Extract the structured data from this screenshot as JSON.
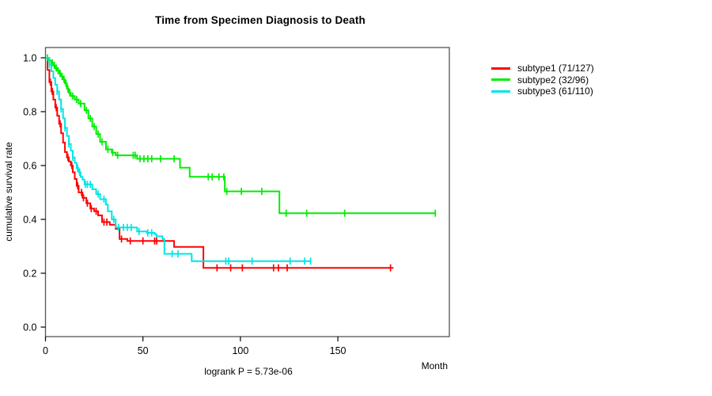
{
  "chart_data": {
    "type": "line",
    "subtype": "kaplan-meier-step-curves",
    "title": "Time from Specimen Diagnosis to Death",
    "xlabel": "Month",
    "ylabel": "cumulative survival rate",
    "footnote": "logrank P = 5.73e-06",
    "grid": false,
    "legend_position": "right-outside",
    "xlim": [
      0,
      207.2
    ],
    "ylim": [
      -0.0353,
      1.0382
    ],
    "xticks": [
      {
        "v": 0,
        "label": "0"
      },
      {
        "v": 50,
        "label": "50"
      },
      {
        "v": 100,
        "label": "100"
      },
      {
        "v": 150,
        "label": "150"
      }
    ],
    "yticks": [
      {
        "v": 0.0,
        "label": "0.0"
      },
      {
        "v": 0.2,
        "label": "0.2"
      },
      {
        "v": 0.4,
        "label": "0.4"
      },
      {
        "v": 0.6,
        "label": "0.6"
      },
      {
        "v": 0.8,
        "label": "0.8"
      },
      {
        "v": 1.0,
        "label": "1.0"
      }
    ],
    "series": [
      {
        "name": "subtype1",
        "label": "subtype1 (71/127)",
        "events": "71/127",
        "color": "#ff0000",
        "steps": [
          [
            0,
            1.0
          ],
          [
            1,
            0.955
          ],
          [
            2,
            0.91
          ],
          [
            3,
            0.875
          ],
          [
            4,
            0.845
          ],
          [
            5,
            0.815
          ],
          [
            6,
            0.785
          ],
          [
            7,
            0.755
          ],
          [
            8,
            0.72
          ],
          [
            9,
            0.685
          ],
          [
            10,
            0.65
          ],
          [
            11,
            0.63
          ],
          [
            12,
            0.615
          ],
          [
            13,
            0.6
          ],
          [
            14,
            0.575
          ],
          [
            15,
            0.55
          ],
          [
            16,
            0.525
          ],
          [
            17,
            0.5
          ],
          [
            19,
            0.48
          ],
          [
            21,
            0.46
          ],
          [
            23,
            0.44
          ],
          [
            25,
            0.43
          ],
          [
            27,
            0.415
          ],
          [
            29,
            0.39
          ],
          [
            33,
            0.38
          ],
          [
            36,
            0.365
          ],
          [
            38,
            0.327
          ],
          [
            42,
            0.32
          ],
          [
            66,
            0.298
          ],
          [
            81,
            0.22
          ]
        ],
        "end": 178.5,
        "censors": [
          2.5,
          3.5,
          5.5,
          7.5,
          11.5,
          13.5,
          16.5,
          18.5,
          19.5,
          21.5,
          23.5,
          26,
          30,
          31.5,
          39,
          43.5,
          50,
          56,
          57,
          88,
          95,
          101,
          117,
          119.5,
          124,
          177
        ]
      },
      {
        "name": "subtype2",
        "label": "subtype2 (32/96)",
        "events": "32/96",
        "color": "#00ee00",
        "steps": [
          [
            0,
            1.0
          ],
          [
            1.5,
            0.99
          ],
          [
            3,
            0.981
          ],
          [
            4,
            0.972
          ],
          [
            5,
            0.962
          ],
          [
            6,
            0.952
          ],
          [
            7,
            0.942
          ],
          [
            8,
            0.931
          ],
          [
            9,
            0.92
          ],
          [
            10,
            0.905
          ],
          [
            11,
            0.885
          ],
          [
            12,
            0.87
          ],
          [
            13,
            0.858
          ],
          [
            15,
            0.845
          ],
          [
            17,
            0.83
          ],
          [
            20,
            0.805
          ],
          [
            22,
            0.775
          ],
          [
            24,
            0.745
          ],
          [
            26,
            0.717
          ],
          [
            28,
            0.688
          ],
          [
            31,
            0.66
          ],
          [
            34,
            0.648
          ],
          [
            36,
            0.638
          ],
          [
            47,
            0.625
          ],
          [
            69,
            0.592
          ],
          [
            74,
            0.558
          ],
          [
            92,
            0.504
          ],
          [
            120,
            0.423
          ]
        ],
        "end": 200,
        "censors": [
          1,
          2,
          3.5,
          4.5,
          5.5,
          6.5,
          7.5,
          8.5,
          9.5,
          10.5,
          11.5,
          12.5,
          14,
          16,
          18,
          21,
          23,
          25,
          27,
          29,
          32,
          34.5,
          37,
          45,
          46,
          48.5,
          50.5,
          52.5,
          54.5,
          59,
          66,
          83.5,
          85.5,
          89,
          91.5,
          93,
          100.5,
          111,
          123.5,
          134,
          153.5,
          200
        ]
      },
      {
        "name": "subtype3",
        "label": "subtype3 (61/110)",
        "events": "61/110",
        "color": "#00e5e5",
        "steps": [
          [
            0,
            1.0
          ],
          [
            2,
            0.975
          ],
          [
            3,
            0.95
          ],
          [
            4,
            0.925
          ],
          [
            5,
            0.9
          ],
          [
            6,
            0.875
          ],
          [
            7,
            0.845
          ],
          [
            8,
            0.81
          ],
          [
            9,
            0.775
          ],
          [
            10,
            0.74
          ],
          [
            11,
            0.71
          ],
          [
            12,
            0.68
          ],
          [
            13,
            0.655
          ],
          [
            14,
            0.63
          ],
          [
            15,
            0.61
          ],
          [
            16,
            0.59
          ],
          [
            17,
            0.575
          ],
          [
            18,
            0.558
          ],
          [
            19,
            0.548
          ],
          [
            20,
            0.53
          ],
          [
            24,
            0.512
          ],
          [
            26,
            0.494
          ],
          [
            28,
            0.475
          ],
          [
            31,
            0.455
          ],
          [
            32,
            0.43
          ],
          [
            34,
            0.4
          ],
          [
            36,
            0.37
          ],
          [
            47,
            0.355
          ],
          [
            52,
            0.35
          ],
          [
            56,
            0.345
          ],
          [
            57,
            0.337
          ],
          [
            60,
            0.327
          ],
          [
            61,
            0.272
          ],
          [
            75,
            0.245
          ]
        ],
        "end": 136,
        "censors": [
          2,
          6,
          8,
          10,
          12,
          14,
          16.5,
          17.5,
          20.5,
          21.5,
          23,
          27,
          30,
          35,
          37.5,
          40,
          42,
          44,
          48,
          52.5,
          54.5,
          65,
          68,
          92.5,
          94,
          106,
          125.5,
          133,
          136
        ]
      }
    ]
  },
  "colors": {
    "background": "#ffffff",
    "axis": "#000000",
    "box": "#555555",
    "text": "#000000"
  }
}
